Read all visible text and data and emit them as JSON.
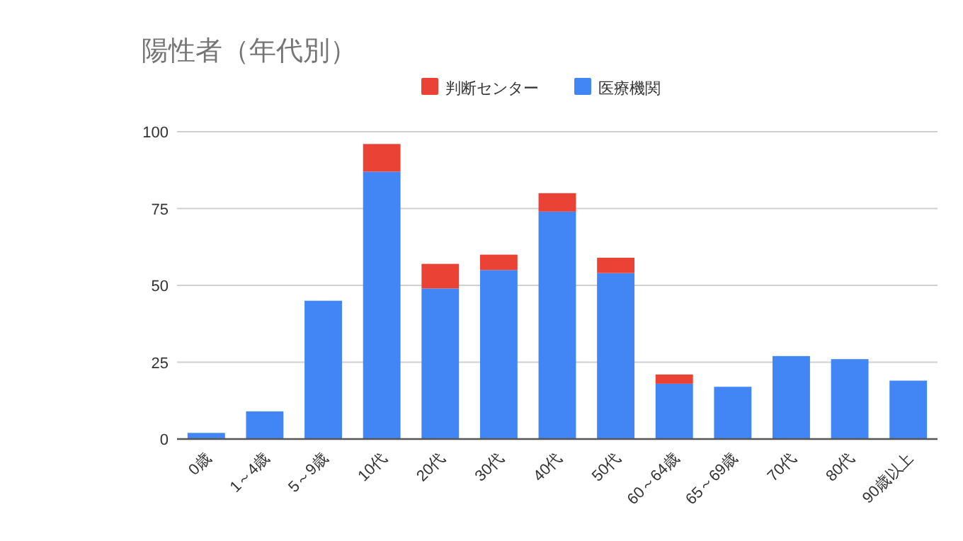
{
  "chart_data": {
    "type": "bar",
    "title": "陽性者（年代別）",
    "stacked": true,
    "grid": "y",
    "legend": "top",
    "categories": [
      "0歳",
      "1～4歳",
      "5～9歳",
      "10代",
      "20代",
      "30代",
      "40代",
      "50代",
      "60～64歳",
      "65～69歳",
      "70代",
      "80代",
      "90歳以上"
    ],
    "series": [
      {
        "name": "医療機関",
        "color": "#4285f4",
        "values": [
          2,
          9,
          45,
          87,
          49,
          55,
          74,
          54,
          18,
          17,
          27,
          26,
          19
        ]
      },
      {
        "name": "判断センター",
        "color": "#ea4335",
        "values": [
          0,
          0,
          0,
          9,
          8,
          5,
          6,
          5,
          3,
          0,
          0,
          0,
          0
        ]
      }
    ],
    "ylim": [
      0,
      100
    ],
    "yticks": [
      0,
      25,
      50,
      75,
      100
    ]
  }
}
